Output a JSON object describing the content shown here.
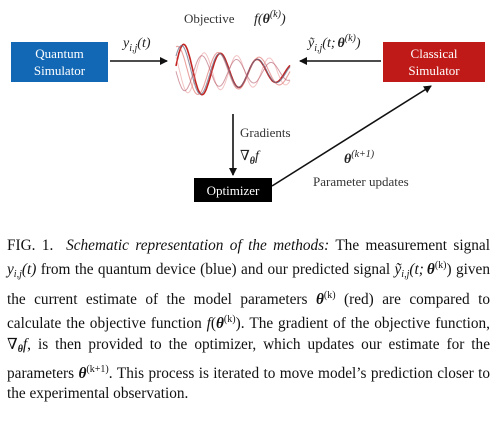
{
  "diagram": {
    "quantum_box": {
      "line1": "Quantum",
      "line2": "Simulator",
      "color": "#1368b5"
    },
    "classical_box": {
      "line1": "Classical",
      "line2": "Simulator",
      "color": "#bf1a17"
    },
    "optimizer_box": {
      "label": "Optimizer",
      "color": "#000000"
    },
    "objective_label": "Objective",
    "objective_math": "f(θ(k))",
    "signal_measured": "yi,j(t)",
    "signal_predicted": "ỹi,j(t; θ(k))",
    "gradients_label": "Gradients",
    "gradient_math": "∇θf",
    "update_math": "θ(k+1)",
    "update_label": "Parameter updates"
  },
  "caption": {
    "fig_label": "FIG. 1.",
    "heading": "Schematic representation of the methods:",
    "t1": "The measurement signal",
    "y": "y",
    "ij": "i,j",
    "t_arg": "(t)",
    "t2": "from the quantum device (blue) and our predicted signal",
    "ytilde": "ỹ",
    "t_semi": "(t;",
    "theta": "θ",
    "k": "(k)",
    "close": ")",
    "t3": "given the current estimate of the model parameters",
    "t4": "(red) are compared to calculate the objective function",
    "f": "f",
    "open": "(",
    "t5": "). The gradient of the objective function,",
    "nabla": "∇",
    "t6": ", is then provided to the optimizer, which updates our estimate for the parameters",
    "kp1": "(k+1)",
    "t7": ". This process is iterated to move model’s prediction closer to the experimental observation."
  }
}
